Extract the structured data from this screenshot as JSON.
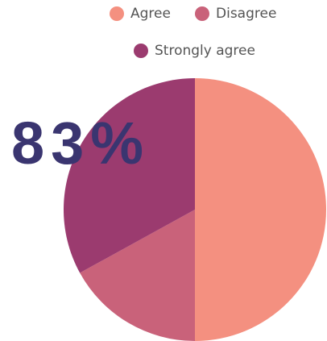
{
  "chart_data": {
    "type": "pie",
    "categories": [
      "Agree",
      "Disagree",
      "Strongly agree"
    ],
    "values": [
      50,
      17,
      33
    ],
    "colors": [
      "#f49080",
      "#c9627a",
      "#9b3b6f"
    ],
    "annotation": "83%"
  }
}
